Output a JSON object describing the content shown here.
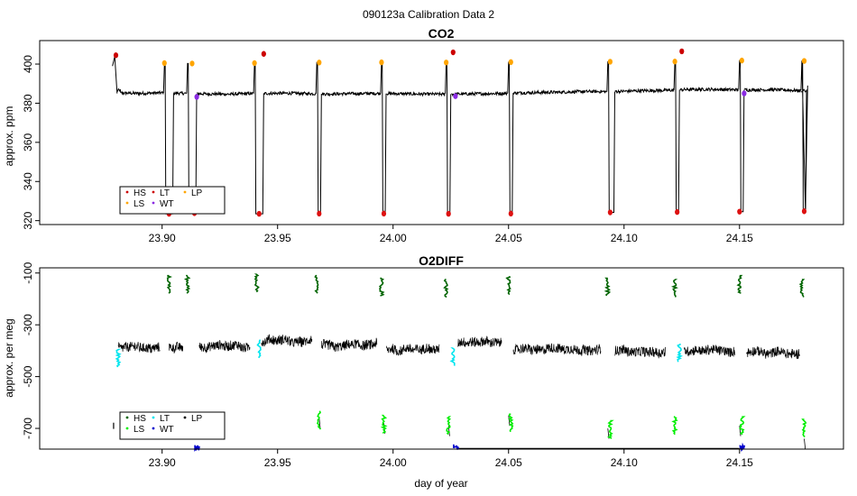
{
  "figure": {
    "title": "090123a   Calibration Data 2",
    "xlabel": "day of year"
  },
  "chart_data": [
    {
      "type": "line",
      "title": "CO2",
      "ylabel": "approx. ppm",
      "xlim": [
        23.847,
        24.195
      ],
      "ylim": [
        318,
        412
      ],
      "xticks": [
        23.9,
        23.95,
        24.0,
        24.05,
        24.1,
        24.15
      ],
      "yticks": [
        320,
        340,
        360,
        380,
        400
      ],
      "series_color": "#000000",
      "baseline_points": [
        [
          23.882,
          385.2
        ],
        [
          23.89,
          385.0
        ],
        [
          23.899,
          385.3
        ],
        [
          23.918,
          384.8
        ],
        [
          23.929,
          384.6
        ],
        [
          23.938,
          384.9
        ],
        [
          23.945,
          385.0
        ],
        [
          23.955,
          385.1
        ],
        [
          23.964,
          384.9
        ],
        [
          23.972,
          384.7
        ],
        [
          23.983,
          384.9
        ],
        [
          23.992,
          385.0
        ],
        [
          24.0,
          384.9
        ],
        [
          24.01,
          384.7
        ],
        [
          24.02,
          384.6
        ],
        [
          24.03,
          384.7
        ],
        [
          24.04,
          384.9
        ],
        [
          24.048,
          385.0
        ],
        [
          24.054,
          385.3
        ],
        [
          24.07,
          385.6
        ],
        [
          24.085,
          386.0
        ],
        [
          24.092,
          385.9
        ],
        [
          24.097,
          386.0
        ],
        [
          24.108,
          386.4
        ],
        [
          24.12,
          386.6
        ],
        [
          24.127,
          387.0
        ],
        [
          24.138,
          387.1
        ],
        [
          24.148,
          386.9
        ],
        [
          24.154,
          386.8
        ],
        [
          24.165,
          386.9
        ],
        [
          24.175,
          386.5
        ]
      ],
      "calibration_cycles": [
        {
          "start": 23.879,
          "end": 23.879,
          "high": 404.5,
          "low": null
        },
        {
          "start": 23.901,
          "end": 23.904,
          "high": 400.5,
          "low": 323.5
        },
        {
          "start": 23.911,
          "end": 23.914,
          "high": 400.3,
          "low": 323.8
        },
        {
          "start": 23.94,
          "end": 23.943,
          "high": 400.5,
          "low": 323.5
        },
        {
          "start": 23.943,
          "end": 23.943,
          "high": 405.2,
          "low": null
        },
        {
          "start": 23.967,
          "end": 23.968,
          "high": 400.8,
          "low": 323.6
        },
        {
          "start": 23.995,
          "end": 23.996,
          "high": 400.9,
          "low": 323.6
        },
        {
          "start": 24.023,
          "end": 24.024,
          "high": 400.8,
          "low": 323.5
        },
        {
          "start": 24.026,
          "end": 24.026,
          "high": 406.0,
          "low": null
        },
        {
          "start": 24.05,
          "end": 24.051,
          "high": 401.0,
          "low": 323.6
        },
        {
          "start": 24.093,
          "end": 24.095,
          "high": 401.2,
          "low": 324.2
        },
        {
          "start": 24.122,
          "end": 24.123,
          "high": 401.3,
          "low": 324.4
        },
        {
          "start": 24.125,
          "end": 24.125,
          "high": 406.5,
          "low": null
        },
        {
          "start": 24.15,
          "end": 24.151,
          "high": 401.8,
          "low": 324.6
        },
        {
          "start": 24.177,
          "end": 24.178,
          "high": 401.6,
          "low": 324.8
        }
      ],
      "markers": [
        {
          "series": "HS",
          "x": 23.88,
          "y": 404.5
        },
        {
          "series": "HS",
          "x": 23.944,
          "y": 405.2
        },
        {
          "series": "HS",
          "x": 24.026,
          "y": 406.0
        },
        {
          "series": "HS",
          "x": 24.125,
          "y": 406.5
        },
        {
          "series": "LP",
          "x": 23.901,
          "y": 400.5
        },
        {
          "series": "LP",
          "x": 23.913,
          "y": 400.3
        },
        {
          "series": "LP",
          "x": 23.94,
          "y": 400.5
        },
        {
          "series": "LP",
          "x": 23.968,
          "y": 400.8
        },
        {
          "series": "LP",
          "x": 23.995,
          "y": 400.9
        },
        {
          "series": "LP",
          "x": 24.023,
          "y": 400.8
        },
        {
          "series": "LP",
          "x": 24.051,
          "y": 401.0
        },
        {
          "series": "LP",
          "x": 24.094,
          "y": 401.2
        },
        {
          "series": "LP",
          "x": 24.122,
          "y": 401.3
        },
        {
          "series": "LP",
          "x": 24.151,
          "y": 401.8
        },
        {
          "series": "LP",
          "x": 24.178,
          "y": 401.6
        },
        {
          "series": "LT",
          "x": 23.903,
          "y": 323.5
        },
        {
          "series": "LT",
          "x": 23.914,
          "y": 323.8
        },
        {
          "series": "LT",
          "x": 23.942,
          "y": 323.5
        },
        {
          "series": "LT",
          "x": 23.968,
          "y": 323.6
        },
        {
          "series": "LT",
          "x": 23.996,
          "y": 323.6
        },
        {
          "series": "LT",
          "x": 24.024,
          "y": 323.5
        },
        {
          "series": "LT",
          "x": 24.051,
          "y": 323.6
        },
        {
          "series": "LT",
          "x": 24.094,
          "y": 324.2
        },
        {
          "series": "LT",
          "x": 24.123,
          "y": 324.4
        },
        {
          "series": "LT",
          "x": 24.15,
          "y": 324.6
        },
        {
          "series": "LT",
          "x": 24.178,
          "y": 324.8
        },
        {
          "series": "WT",
          "x": 23.915,
          "y": 383.2
        },
        {
          "series": "WT",
          "x": 24.027,
          "y": 383.6
        },
        {
          "series": "WT",
          "x": 24.152,
          "y": 385.0
        }
      ],
      "legend": {
        "placement": "bottom-left",
        "entries": [
          {
            "label": "HS",
            "color": "#cc0000"
          },
          {
            "label": "LT",
            "color": "#cc0000"
          },
          {
            "label": "LP",
            "color": "#ffa500"
          },
          {
            "label": "LS",
            "color": "#ffa500"
          },
          {
            "label": "WT",
            "color": "#8a2be2"
          }
        ]
      }
    },
    {
      "type": "line",
      "title": "O2DIFF",
      "ylabel": "approx. per meg",
      "xlim": [
        23.847,
        24.195
      ],
      "ylim": [
        -780,
        -80
      ],
      "xticks": [
        23.9,
        23.95,
        24.0,
        24.05,
        24.1,
        24.15
      ],
      "yticks": [
        -700,
        -500,
        -300,
        -100
      ],
      "series_color": "#000000",
      "ambient_segments": [
        {
          "start": 23.881,
          "end": 23.899,
          "level": -385
        },
        {
          "start": 23.903,
          "end": 23.909,
          "level": -385
        },
        {
          "start": 23.916,
          "end": 23.938,
          "level": -385
        },
        {
          "start": 23.943,
          "end": 23.965,
          "level": -365
        },
        {
          "start": 23.969,
          "end": 23.993,
          "level": -380
        },
        {
          "start": 23.997,
          "end": 24.02,
          "level": -395
        },
        {
          "start": 24.028,
          "end": 24.047,
          "level": -370
        },
        {
          "start": 24.052,
          "end": 24.09,
          "level": -395
        },
        {
          "start": 24.096,
          "end": 24.118,
          "level": -400
        },
        {
          "start": 24.126,
          "end": 24.148,
          "level": -400
        },
        {
          "start": 24.153,
          "end": 24.176,
          "level": -410
        }
      ],
      "marker_clusters": [
        {
          "series": "HS",
          "x": 23.903,
          "y": -145
        },
        {
          "series": "HS",
          "x": 23.911,
          "y": -145
        },
        {
          "series": "HS",
          "x": 23.941,
          "y": -140
        },
        {
          "series": "HS",
          "x": 23.967,
          "y": -145
        },
        {
          "series": "HS",
          "x": 23.995,
          "y": -155
        },
        {
          "series": "HS",
          "x": 24.023,
          "y": -160
        },
        {
          "series": "HS",
          "x": 24.05,
          "y": -150
        },
        {
          "series": "HS",
          "x": 24.093,
          "y": -155
        },
        {
          "series": "HS",
          "x": 24.122,
          "y": -160
        },
        {
          "series": "HS",
          "x": 24.15,
          "y": -145
        },
        {
          "series": "HS",
          "x": 24.177,
          "y": -160
        },
        {
          "series": "LT",
          "x": 23.881,
          "y": -430
        },
        {
          "series": "LT",
          "x": 23.942,
          "y": -395
        },
        {
          "series": "LT",
          "x": 24.026,
          "y": -425
        },
        {
          "series": "LT",
          "x": 24.124,
          "y": -410
        },
        {
          "series": "LS",
          "x": 23.968,
          "y": -670
        },
        {
          "series": "LS",
          "x": 23.996,
          "y": -685
        },
        {
          "series": "LS",
          "x": 24.024,
          "y": -690
        },
        {
          "series": "LS",
          "x": 24.051,
          "y": -680
        },
        {
          "series": "LS",
          "x": 24.094,
          "y": -705
        },
        {
          "series": "LS",
          "x": 24.122,
          "y": -690
        },
        {
          "series": "LS",
          "x": 24.151,
          "y": -690
        },
        {
          "series": "LS",
          "x": 24.178,
          "y": -700
        },
        {
          "series": "WT",
          "x": 23.915,
          "y": -775
        },
        {
          "series": "WT",
          "x": 24.027,
          "y": -772
        },
        {
          "series": "WT",
          "x": 24.151,
          "y": -775
        }
      ],
      "stray_black": [
        {
          "x": 23.879,
          "y": -690
        }
      ],
      "legend": {
        "placement": "bottom-left",
        "entries": [
          {
            "label": "HS",
            "color": "#006400"
          },
          {
            "label": "LT",
            "color": "#00e5ee"
          },
          {
            "label": "LP",
            "color": "#000000"
          },
          {
            "label": "LS",
            "color": "#00ee00"
          },
          {
            "label": "WT",
            "color": "#0000cd"
          }
        ]
      }
    }
  ],
  "colors": {
    "HS_co2": "#cc0000",
    "LP_co2": "#ffa500",
    "WT_co2": "#8a2be2",
    "HS_o2": "#006400",
    "LT_o2": "#00e5ee",
    "LS_o2": "#00ee00",
    "WT_o2": "#0000cd"
  }
}
